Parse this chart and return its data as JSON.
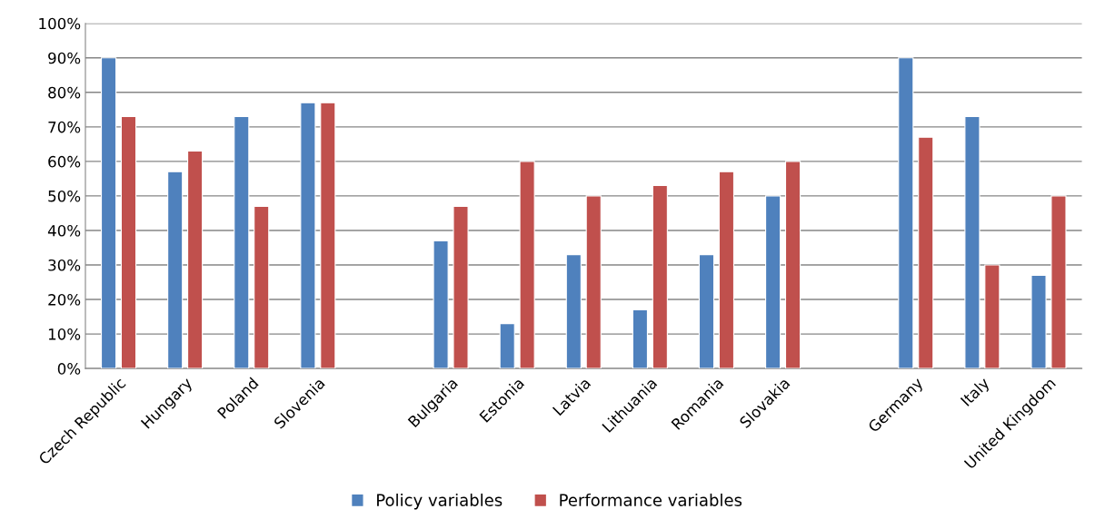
{
  "chart_data": {
    "type": "bar",
    "categories": [
      "Czech Republic",
      "Hungary",
      "Poland",
      "Slovenia",
      null,
      "Bulgaria",
      "Estonia",
      "Latvia",
      "Lithuania",
      "Romania",
      "Slovakia",
      null,
      "Germany",
      "Italy",
      "United Kingdom"
    ],
    "series": [
      {
        "name": "Policy variables",
        "color": "#4f81bd",
        "values": [
          90,
          57,
          73,
          77,
          null,
          37,
          13,
          33,
          17,
          33,
          50,
          null,
          90,
          73,
          27
        ]
      },
      {
        "name": "Performance variables",
        "color": "#c0504d",
        "values": [
          73,
          63,
          47,
          77,
          null,
          47,
          60,
          50,
          53,
          57,
          60,
          null,
          67,
          30,
          50
        ]
      }
    ],
    "ylim": [
      0,
      100
    ],
    "yticks": [
      {
        "value": 0,
        "label": "0%"
      },
      {
        "value": 10,
        "label": "10%"
      },
      {
        "value": 20,
        "label": "20%"
      },
      {
        "value": 30,
        "label": "30%"
      },
      {
        "value": 40,
        "label": "40%"
      },
      {
        "value": 50,
        "label": "50%"
      },
      {
        "value": 60,
        "label": "60%"
      },
      {
        "value": 70,
        "label": "70%"
      },
      {
        "value": 80,
        "label": "80%"
      },
      {
        "value": 90,
        "label": "90%"
      },
      {
        "value": 100,
        "label": "100%"
      }
    ],
    "grid": "y",
    "legend": "bottom"
  }
}
